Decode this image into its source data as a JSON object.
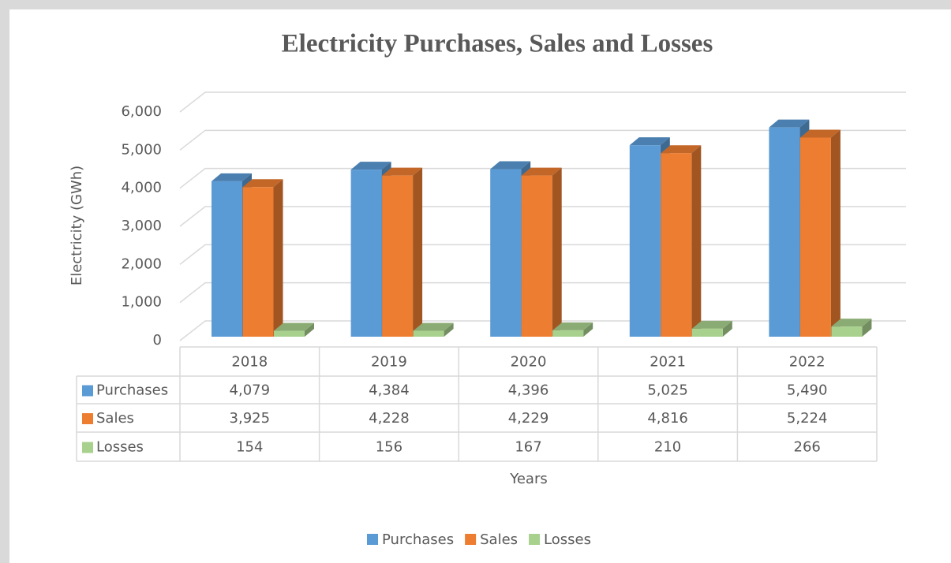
{
  "chart_data": {
    "type": "bar3d",
    "title": "Electricity Purchases, Sales and Losses",
    "y_label": "Electricity (GWh)",
    "x_label": "Years",
    "categories": [
      "2018",
      "2019",
      "2020",
      "2021",
      "2022"
    ],
    "series": [
      {
        "name": "Purchases",
        "color": "#5b9bd5",
        "values": [
          4079,
          4384,
          4396,
          5025,
          5490
        ],
        "value_labels": [
          "4,079",
          "4,384",
          "4,396",
          "5,025",
          "5,490"
        ]
      },
      {
        "name": "Sales",
        "color": "#ed7d31",
        "values": [
          3925,
          4228,
          4229,
          4816,
          5224
        ],
        "value_labels": [
          "3,925",
          "4,228",
          "4,229",
          "4,816",
          "5,224"
        ]
      },
      {
        "name": "Losses",
        "color": "#a9d18e",
        "values": [
          154,
          156,
          167,
          210,
          266
        ],
        "value_labels": [
          "154",
          "156",
          "167",
          "210",
          "266"
        ]
      }
    ],
    "ylim": [
      0,
      6000
    ],
    "yticks": [
      0,
      {
        "value": 1000,
        "label": "1,000"
      },
      {
        "value": 2000,
        "label": "2,000"
      },
      {
        "value": 3000,
        "label": "3,000"
      },
      {
        "value": 4000,
        "label": "4,000"
      },
      {
        "value": 5000,
        "label": "5,000"
      },
      {
        "value": 6000,
        "label": "6,000"
      }
    ],
    "grid": true,
    "legend": "bottom",
    "data_table": true
  }
}
